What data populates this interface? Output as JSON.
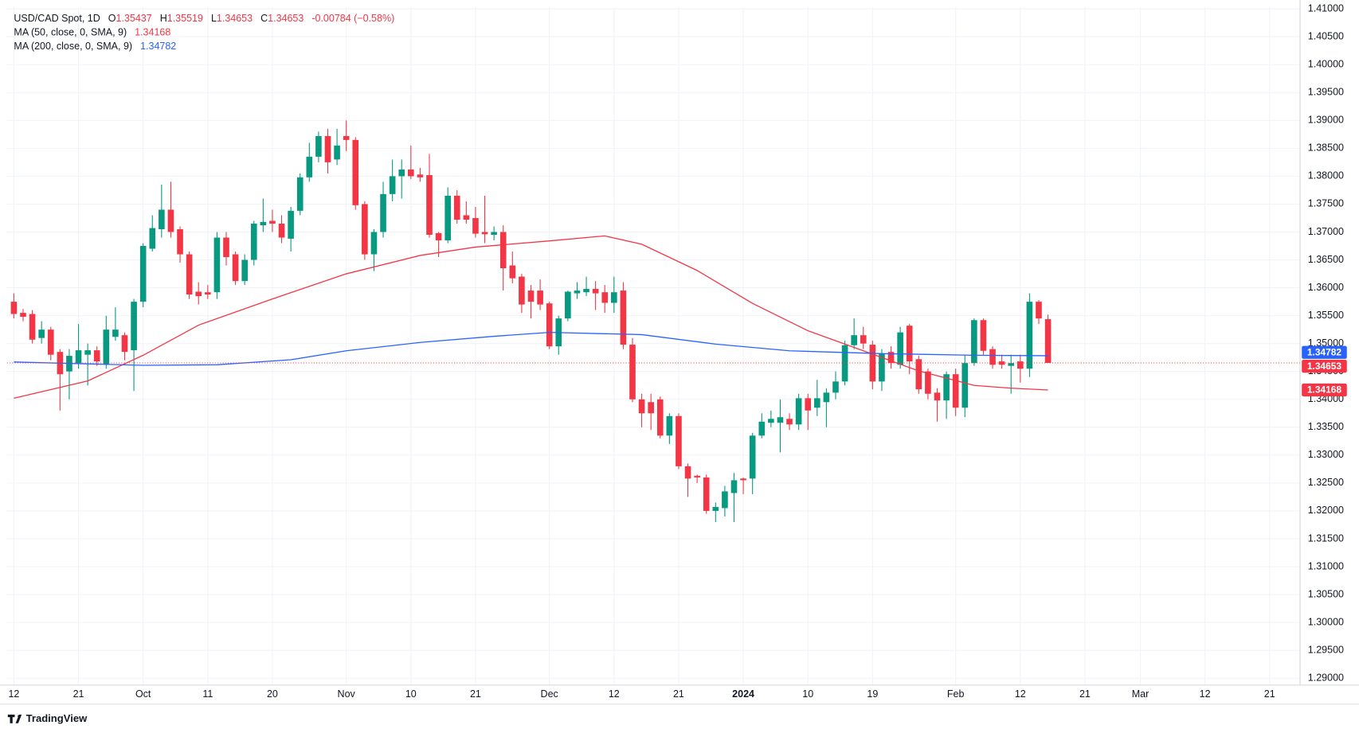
{
  "chart_data": {
    "type": "candlestick",
    "ohlc_labels": [
      "O",
      "H",
      "L",
      "C"
    ],
    "change_text": "-0.00784 (−0.58%)",
    "footer": "TradingView",
    "up_color": "#089981",
    "down_color": "#f23645",
    "grid": true,
    "ylim": [
      1.28876,
      1.41031
    ],
    "yticks": [
      {
        "value": 1.29,
        "label": "1.29000"
      },
      {
        "value": 1.295,
        "label": "1.29500"
      },
      {
        "value": 1.3,
        "label": "1.30000"
      },
      {
        "value": 1.305,
        "label": "1.30500"
      },
      {
        "value": 1.31,
        "label": "1.31000"
      },
      {
        "value": 1.315,
        "label": "1.31500"
      },
      {
        "value": 1.32,
        "label": "1.32000"
      },
      {
        "value": 1.325,
        "label": "1.32500"
      },
      {
        "value": 1.33,
        "label": "1.33000"
      },
      {
        "value": 1.335,
        "label": "1.33500"
      },
      {
        "value": 1.34,
        "label": "1.34000"
      },
      {
        "value": 1.345,
        "label": "1.34500"
      },
      {
        "value": 1.35,
        "label": "1.35000"
      },
      {
        "value": 1.355,
        "label": "1.35500"
      },
      {
        "value": 1.36,
        "label": "1.36000"
      },
      {
        "value": 1.365,
        "label": "1.36500"
      },
      {
        "value": 1.37,
        "label": "1.37000"
      },
      {
        "value": 1.375,
        "label": "1.37500"
      },
      {
        "value": 1.38,
        "label": "1.38000"
      },
      {
        "value": 1.385,
        "label": "1.38500"
      },
      {
        "value": 1.39,
        "label": "1.39000"
      },
      {
        "value": 1.395,
        "label": "1.39500"
      },
      {
        "value": 1.4,
        "label": "1.40000"
      },
      {
        "value": 1.405,
        "label": "1.40500"
      },
      {
        "value": 1.41,
        "label": "1.41000"
      }
    ],
    "xlim": [
      -0.75,
      139.3
    ],
    "xticks": [
      {
        "value": 0,
        "label": "12"
      },
      {
        "value": 7,
        "label": "21"
      },
      {
        "value": 14,
        "label": "Oct"
      },
      {
        "value": 21,
        "label": "11"
      },
      {
        "value": 28,
        "label": "20"
      },
      {
        "value": 36,
        "label": "Nov"
      },
      {
        "value": 43,
        "label": "10"
      },
      {
        "value": 50,
        "label": "21"
      },
      {
        "value": 58,
        "label": "Dec"
      },
      {
        "value": 65,
        "label": "12"
      },
      {
        "value": 72,
        "label": "21"
      },
      {
        "value": 79,
        "label": "2024"
      },
      {
        "value": 86,
        "label": "10"
      },
      {
        "value": 93,
        "label": "19"
      },
      {
        "value": 102,
        "label": "Feb"
      },
      {
        "value": 109,
        "label": "12"
      },
      {
        "value": 116,
        "label": "21"
      },
      {
        "value": 122,
        "label": "Mar"
      },
      {
        "value": 129,
        "label": "12"
      },
      {
        "value": 136,
        "label": "21"
      }
    ],
    "series": [
      {
        "name": "USD/CAD Spot, 1D",
        "type": "candlestick",
        "open": [
          1.3575,
          1.3555,
          1.3553,
          1.351,
          1.3525,
          1.3485,
          1.345,
          1.3465,
          1.348,
          1.3488,
          1.3462,
          1.3512,
          1.3515,
          1.3488,
          1.3575,
          1.367,
          1.3705,
          1.374,
          1.3705,
          1.366,
          1.3593,
          1.3592,
          1.3592,
          1.369,
          1.366,
          1.3612,
          1.365,
          1.3712,
          1.372,
          1.3715,
          1.3688,
          1.3738,
          1.3798,
          1.3835,
          1.3872,
          1.383,
          1.3872,
          1.3865,
          1.375,
          1.366,
          1.37,
          1.3768,
          1.38,
          1.3812,
          1.3803,
          1.3802,
          1.3698,
          1.3685,
          1.3765,
          1.373,
          1.3725,
          1.37,
          1.3695,
          1.37,
          1.364,
          1.362,
          1.3595,
          1.3595,
          1.3572,
          1.3495,
          1.3545,
          1.359,
          1.3592,
          1.3598,
          1.3592,
          1.3573,
          1.3595,
          1.3498,
          1.34,
          1.3395,
          1.34,
          1.3335,
          1.337,
          1.328,
          1.3263,
          1.326,
          1.32,
          1.3205,
          1.3232,
          1.3258,
          1.3258,
          1.3335,
          1.3358,
          1.3358,
          1.3365,
          1.3355,
          1.3402,
          1.3385,
          1.3395,
          1.3412,
          1.3432,
          1.3497,
          1.3515,
          1.3498,
          1.3432,
          1.3485,
          1.3462,
          1.3532,
          1.3472,
          1.345,
          1.3412,
          1.3398,
          1.3445,
          1.3385,
          1.3465,
          1.3542,
          1.349,
          1.3468,
          1.346,
          1.3468,
          1.3455,
          1.3575,
          1.35437
        ],
        "high": [
          1.359,
          1.3562,
          1.356,
          1.354,
          1.353,
          1.349,
          1.349,
          1.3535,
          1.35,
          1.3495,
          1.355,
          1.3565,
          1.352,
          1.358,
          1.368,
          1.373,
          1.3785,
          1.379,
          1.371,
          1.3665,
          1.361,
          1.3605,
          1.37,
          1.37,
          1.3665,
          1.366,
          1.372,
          1.376,
          1.374,
          1.373,
          1.3745,
          1.3805,
          1.386,
          1.388,
          1.3885,
          1.3885,
          1.39,
          1.387,
          1.3755,
          1.3705,
          1.379,
          1.383,
          1.383,
          1.3855,
          1.3815,
          1.384,
          1.37,
          1.378,
          1.3775,
          1.3755,
          1.3745,
          1.3765,
          1.371,
          1.3712,
          1.3665,
          1.3625,
          1.3605,
          1.3615,
          1.3575,
          1.355,
          1.3595,
          1.361,
          1.362,
          1.3612,
          1.3605,
          1.362,
          1.361,
          1.351,
          1.341,
          1.341,
          1.3405,
          1.3375,
          1.3375,
          1.3285,
          1.3265,
          1.3265,
          1.3215,
          1.3245,
          1.3268,
          1.326,
          1.334,
          1.3375,
          1.338,
          1.34,
          1.3375,
          1.341,
          1.341,
          1.3435,
          1.342,
          1.345,
          1.3505,
          1.3545,
          1.353,
          1.3505,
          1.349,
          1.3495,
          1.353,
          1.3535,
          1.3478,
          1.3455,
          1.342,
          1.345,
          1.3455,
          1.348,
          1.3545,
          1.3545,
          1.3495,
          1.348,
          1.348,
          1.348,
          1.359,
          1.3578,
          1.35519
        ],
        "low": [
          1.3545,
          1.354,
          1.35,
          1.35,
          1.347,
          1.338,
          1.34,
          1.3455,
          1.3425,
          1.346,
          1.3455,
          1.3505,
          1.347,
          1.3415,
          1.3565,
          1.3665,
          1.369,
          1.369,
          1.3645,
          1.358,
          1.357,
          1.358,
          1.358,
          1.364,
          1.3605,
          1.3605,
          1.364,
          1.37,
          1.37,
          1.368,
          1.3665,
          1.373,
          1.379,
          1.3825,
          1.3805,
          1.382,
          1.3845,
          1.374,
          1.365,
          1.363,
          1.369,
          1.3755,
          1.376,
          1.3795,
          1.379,
          1.369,
          1.3655,
          1.368,
          1.3715,
          1.3715,
          1.369,
          1.368,
          1.3685,
          1.3595,
          1.3608,
          1.3555,
          1.3545,
          1.356,
          1.349,
          1.348,
          1.354,
          1.358,
          1.3585,
          1.356,
          1.3555,
          1.3555,
          1.349,
          1.3395,
          1.335,
          1.3345,
          1.333,
          1.332,
          1.3275,
          1.3225,
          1.325,
          1.3195,
          1.318,
          1.319,
          1.318,
          1.323,
          1.323,
          1.333,
          1.335,
          1.3305,
          1.3345,
          1.3345,
          1.3345,
          1.337,
          1.335,
          1.34,
          1.3425,
          1.349,
          1.349,
          1.3418,
          1.3415,
          1.3455,
          1.3455,
          1.3445,
          1.341,
          1.34,
          1.336,
          1.3365,
          1.337,
          1.3368,
          1.346,
          1.348,
          1.3455,
          1.3455,
          1.341,
          1.343,
          1.344,
          1.3535,
          1.34653
        ],
        "close": [
          1.3553,
          1.3548,
          1.3507,
          1.3525,
          1.348,
          1.3445,
          1.3478,
          1.3488,
          1.3488,
          1.3468,
          1.3525,
          1.3525,
          1.3485,
          1.3575,
          1.3675,
          1.3707,
          1.374,
          1.37,
          1.366,
          1.3588,
          1.3585,
          1.3588,
          1.369,
          1.3655,
          1.3612,
          1.365,
          1.3715,
          1.3718,
          1.3715,
          1.369,
          1.3738,
          1.3798,
          1.3835,
          1.3872,
          1.3825,
          1.3855,
          1.3865,
          1.3748,
          1.366,
          1.37,
          1.3768,
          1.38,
          1.3812,
          1.38,
          1.3798,
          1.3695,
          1.3685,
          1.3765,
          1.3722,
          1.3722,
          1.3697,
          1.3696,
          1.37,
          1.3635,
          1.3617,
          1.357,
          1.3575,
          1.357,
          1.3495,
          1.3545,
          1.3593,
          1.3595,
          1.3598,
          1.359,
          1.3573,
          1.3592,
          1.3498,
          1.34,
          1.3375,
          1.3375,
          1.3335,
          1.337,
          1.328,
          1.3258,
          1.326,
          1.32,
          1.3207,
          1.3235,
          1.3255,
          1.3255,
          1.3335,
          1.336,
          1.3365,
          1.3368,
          1.3355,
          1.3402,
          1.338,
          1.3402,
          1.3412,
          1.3432,
          1.3497,
          1.3515,
          1.35,
          1.3432,
          1.3482,
          1.3465,
          1.352,
          1.3468,
          1.3418,
          1.341,
          1.3398,
          1.3445,
          1.3385,
          1.3465,
          1.3542,
          1.3487,
          1.3462,
          1.3462,
          1.3465,
          1.3455,
          1.3575,
          1.3545,
          1.34653
        ]
      },
      {
        "name": "MA (50, close, 0, SMA, 9)",
        "type": "line",
        "color": "#f23645",
        "x": [
          0,
          8,
          14,
          20,
          28,
          36,
          44,
          50,
          58,
          64,
          68,
          74,
          80,
          86,
          92,
          98,
          104,
          108,
          112
        ],
        "values": [
          1.3402,
          1.3433,
          1.3479,
          1.3533,
          1.358,
          1.3625,
          1.3658,
          1.3673,
          1.3684,
          1.3693,
          1.3678,
          1.3631,
          1.3572,
          1.3523,
          1.3487,
          1.3451,
          1.3425,
          1.342,
          1.34168
        ]
      },
      {
        "name": "MA (200, close, 0, SMA, 9)",
        "type": "line",
        "color": "#2962ff",
        "x": [
          0,
          14,
          22,
          30,
          36,
          44,
          52,
          58,
          68,
          76,
          84,
          94,
          104,
          112
        ],
        "values": [
          1.3467,
          1.3461,
          1.3462,
          1.3471,
          1.3487,
          1.3502,
          1.3513,
          1.352,
          1.3516,
          1.3499,
          1.3487,
          1.3482,
          1.3479,
          1.34782
        ]
      }
    ]
  }
}
